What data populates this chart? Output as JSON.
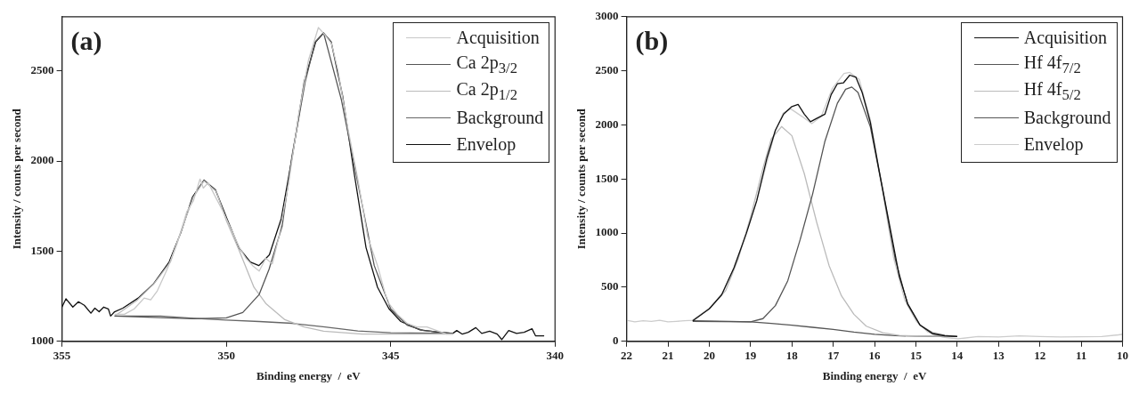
{
  "chart_data": [
    {
      "type": "line",
      "xlabel": "Binding energy  /  eV",
      "ylabel": "Intensity / counts per second",
      "annotations": [
        "(a)"
      ],
      "xlim": [
        355,
        340
      ],
      "xticks": [
        355,
        350,
        345,
        340
      ],
      "ylim": [
        1000,
        2800
      ],
      "yticks": [
        1000,
        1500,
        2000,
        2500
      ],
      "grid": false,
      "legend": "top right",
      "marker": "none",
      "series": [
        {
          "name": "Acquisition",
          "color": "#c8c8c8",
          "x": [
            353.4,
            353.1,
            352.8,
            352.5,
            352.3,
            352.1,
            351.8,
            351.5,
            351.2,
            351.0,
            350.8,
            350.7,
            350.55,
            350.3,
            350.1,
            349.9,
            349.6,
            349.4,
            349.2,
            349.0,
            348.8,
            348.6,
            348.4,
            348.1,
            347.8,
            347.5,
            347.2,
            347.0,
            346.8,
            346.6,
            346.3,
            346.0,
            345.7,
            345.4,
            345.1,
            344.8,
            344.5,
            344.2,
            343.9,
            343.6,
            343.3,
            343.1
          ],
          "values": [
            1150,
            1150,
            1180,
            1240,
            1230,
            1280,
            1400,
            1540,
            1720,
            1780,
            1900,
            1850,
            1880,
            1790,
            1720,
            1640,
            1520,
            1460,
            1420,
            1390,
            1460,
            1430,
            1580,
            1880,
            2260,
            2560,
            2740,
            2700,
            2650,
            2500,
            2180,
            1900,
            1580,
            1420,
            1220,
            1150,
            1100,
            1080,
            1080,
            1060,
            1040,
            1040
          ]
        },
        {
          "name": "Ca 2p$_{3/2}$",
          "color": "#555555",
          "x": [
            353.4,
            351,
            350,
            349.5,
            349,
            348.7,
            348.3,
            348,
            347.6,
            347.3,
            347.04,
            346.5,
            346,
            345.5,
            345,
            344.5,
            344,
            343.1
          ],
          "values": [
            1140,
            1125,
            1130,
            1160,
            1260,
            1400,
            1640,
            2030,
            2440,
            2660,
            2710,
            2340,
            1880,
            1420,
            1180,
            1090,
            1060,
            1044
          ]
        },
        {
          "name": "Ca 2p$_{1/2}$",
          "color": "#bbbbbb",
          "x": [
            353.4,
            352.7,
            352.2,
            351.7,
            351.4,
            351,
            350.68,
            350.3,
            350,
            349.6,
            349.16,
            348.8,
            348.22,
            347.63,
            347.04,
            345.87,
            343.1
          ],
          "values": [
            1140,
            1230,
            1320,
            1440,
            1600,
            1800,
            1890,
            1830,
            1670,
            1500,
            1300,
            1210,
            1120,
            1080,
            1056,
            1040,
            1040
          ]
        },
        {
          "name": "Background",
          "color": "#666666",
          "x": [
            353.4,
            352,
            351,
            350,
            349,
            348,
            347,
            346,
            345,
            343.1
          ],
          "values": [
            1140,
            1140,
            1128,
            1118,
            1110,
            1100,
            1080,
            1058,
            1048,
            1044
          ]
        },
        {
          "name": "Envelop",
          "color": "#111111",
          "x": [
            355,
            354.88,
            354.67,
            354.5,
            354.32,
            354.12,
            354.0,
            353.87,
            353.73,
            353.59,
            353.52,
            353.4,
            353.15,
            352.68,
            352.21,
            351.74,
            351.39,
            351.03,
            350.68,
            350.33,
            349.98,
            349.62,
            349.27,
            349.01,
            348.69,
            348.33,
            347.98,
            347.63,
            347.28,
            347.04,
            346.81,
            346.46,
            346.1,
            345.75,
            345.4,
            345.05,
            344.69,
            344.11,
            343.52,
            343.11,
            342.99,
            342.82,
            342.64,
            342.41,
            342.23,
            341.99,
            341.76,
            341.62,
            341.41,
            341.17,
            340.94,
            340.7,
            340.59,
            340.33
          ],
          "values": [
            1190,
            1236,
            1190,
            1220,
            1200,
            1156,
            1184,
            1164,
            1190,
            1180,
            1140,
            1164,
            1184,
            1240,
            1320,
            1440,
            1600,
            1800,
            1894,
            1840,
            1680,
            1520,
            1440,
            1420,
            1480,
            1680,
            2040,
            2440,
            2660,
            2710,
            2660,
            2360,
            1920,
            1520,
            1300,
            1180,
            1110,
            1064,
            1050,
            1044,
            1060,
            1040,
            1050,
            1076,
            1044,
            1056,
            1040,
            1010,
            1060,
            1044,
            1050,
            1070,
            1030,
            1030
          ]
        }
      ]
    },
    {
      "type": "line",
      "xlabel": "Binding energy  /  eV",
      "ylabel": "Intensity / counts per second",
      "annotations": [
        "(b)"
      ],
      "xlim": [
        22,
        10
      ],
      "xticks": [
        22,
        21,
        20,
        19,
        18,
        17,
        16,
        15,
        14,
        13,
        12,
        11,
        10
      ],
      "ylim": [
        0,
        3000
      ],
      "yticks": [
        0,
        500,
        1000,
        1500,
        2000,
        2500,
        3000
      ],
      "grid": false,
      "legend": "top right",
      "marker": "none",
      "series": [
        {
          "name": "Acquisition",
          "color": "#111111",
          "x": [
            20.4,
            20,
            19.7,
            19.4,
            19.1,
            18.85,
            18.6,
            18.4,
            18.2,
            18.0,
            17.85,
            17.7,
            17.55,
            17.4,
            17.2,
            17.05,
            16.9,
            16.75,
            16.6,
            16.45,
            16.3,
            16.1,
            15.9,
            15.6,
            15.4,
            15.2,
            14.9,
            14.6,
            14.3,
            14.0
          ],
          "values": [
            190,
            300,
            430,
            680,
            1000,
            1300,
            1700,
            1950,
            2100,
            2170,
            2190,
            2100,
            2030,
            2060,
            2100,
            2280,
            2380,
            2390,
            2460,
            2440,
            2300,
            2020,
            1600,
            1000,
            600,
            350,
            150,
            70,
            50,
            45
          ]
        },
        {
          "name": "Hf 4f$_{7/2}$",
          "color": "#555555",
          "x": [
            20.4,
            19,
            18.7,
            18.4,
            18.1,
            17.8,
            17.5,
            17.2,
            16.9,
            16.7,
            16.55,
            16.4,
            16.1,
            15.8,
            15.5,
            15.2,
            14.9,
            14.6,
            14.3,
            14
          ],
          "values": [
            185,
            180,
            210,
            330,
            560,
            940,
            1360,
            1850,
            2200,
            2330,
            2350,
            2300,
            1980,
            1390,
            760,
            340,
            150,
            80,
            55,
            45
          ]
        },
        {
          "name": "Hf 4f$_{5/2}$",
          "color": "#bbbbbb",
          "x": [
            20.4,
            20,
            19.6,
            19.3,
            19.0,
            18.7,
            18.5,
            18.25,
            18.0,
            17.7,
            17.4,
            17.1,
            16.8,
            16.5,
            16.2,
            15.8,
            15.4,
            15,
            14
          ],
          "values": [
            195,
            300,
            470,
            760,
            1150,
            1600,
            1870,
            1985,
            1900,
            1550,
            1100,
            700,
            420,
            250,
            140,
            80,
            55,
            50,
            45
          ]
        },
        {
          "name": "Background",
          "color": "#555555",
          "x": [
            20.4,
            19.5,
            19,
            18.5,
            18,
            17.5,
            17,
            16.5,
            16,
            15.5,
            15,
            14
          ],
          "values": [
            190,
            185,
            180,
            165,
            150,
            130,
            110,
            85,
            65,
            52,
            48,
            45
          ]
        },
        {
          "name": "Envelop",
          "color": "#cccccc",
          "x": [
            22,
            21.8,
            21.6,
            21.4,
            21.2,
            21.0,
            20.8,
            20.6,
            20.4,
            19.96,
            19.68,
            19.41,
            19.13,
            18.86,
            18.58,
            18.4,
            18.21,
            18.03,
            17.75,
            17.52,
            17.29,
            17.02,
            16.74,
            16.6,
            16.37,
            16.1,
            15.82,
            15.54,
            15.27,
            14.99,
            14.72,
            14.35,
            13.98,
            13.5,
            13,
            12.5,
            12,
            11.5,
            11,
            10.5,
            10.1,
            10
          ],
          "values": [
            195,
            180,
            190,
            185,
            195,
            180,
            185,
            190,
            195,
            316,
            447,
            675,
            969,
            1295,
            1686,
            1947,
            2110,
            2149,
            2077,
            2012,
            2077,
            2338,
            2475,
            2485,
            2420,
            2045,
            1425,
            773,
            382,
            186,
            88,
            39,
            23,
            45,
            40,
            50,
            45,
            40,
            42,
            45,
            60,
            65
          ]
        }
      ]
    }
  ]
}
